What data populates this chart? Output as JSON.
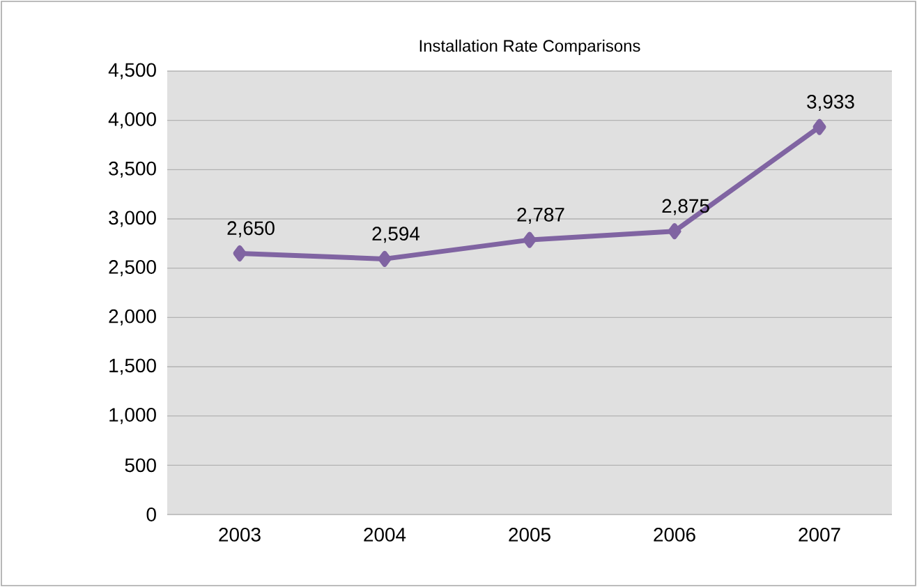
{
  "chart_data": {
    "type": "line",
    "title": "Installation Rate Comparisons",
    "categories": [
      "2003",
      "2004",
      "2005",
      "2006",
      "2007"
    ],
    "series": [
      {
        "color": "#8064a2",
        "values": [
          2650,
          2594,
          2787,
          2875,
          3933
        ],
        "value_labels": [
          "2,650",
          "2,594",
          "2,787",
          "2,875",
          "3,933"
        ]
      }
    ],
    "ylim": [
      0,
      4500
    ],
    "yticks": [
      {
        "value": 0,
        "label": "0"
      },
      {
        "value": 500,
        "label": "500"
      },
      {
        "value": 1000,
        "label": "1,000"
      },
      {
        "value": 1500,
        "label": "1,500"
      },
      {
        "value": 2000,
        "label": "2,000"
      },
      {
        "value": 2500,
        "label": "2,500"
      },
      {
        "value": 3000,
        "label": "3,000"
      },
      {
        "value": 3500,
        "label": "3,500"
      },
      {
        "value": 4000,
        "label": "4,000"
      },
      {
        "value": 4500,
        "label": "4,500"
      }
    ],
    "grid": "y",
    "marker": "diamond",
    "line_style": "solid",
    "legend": false
  }
}
